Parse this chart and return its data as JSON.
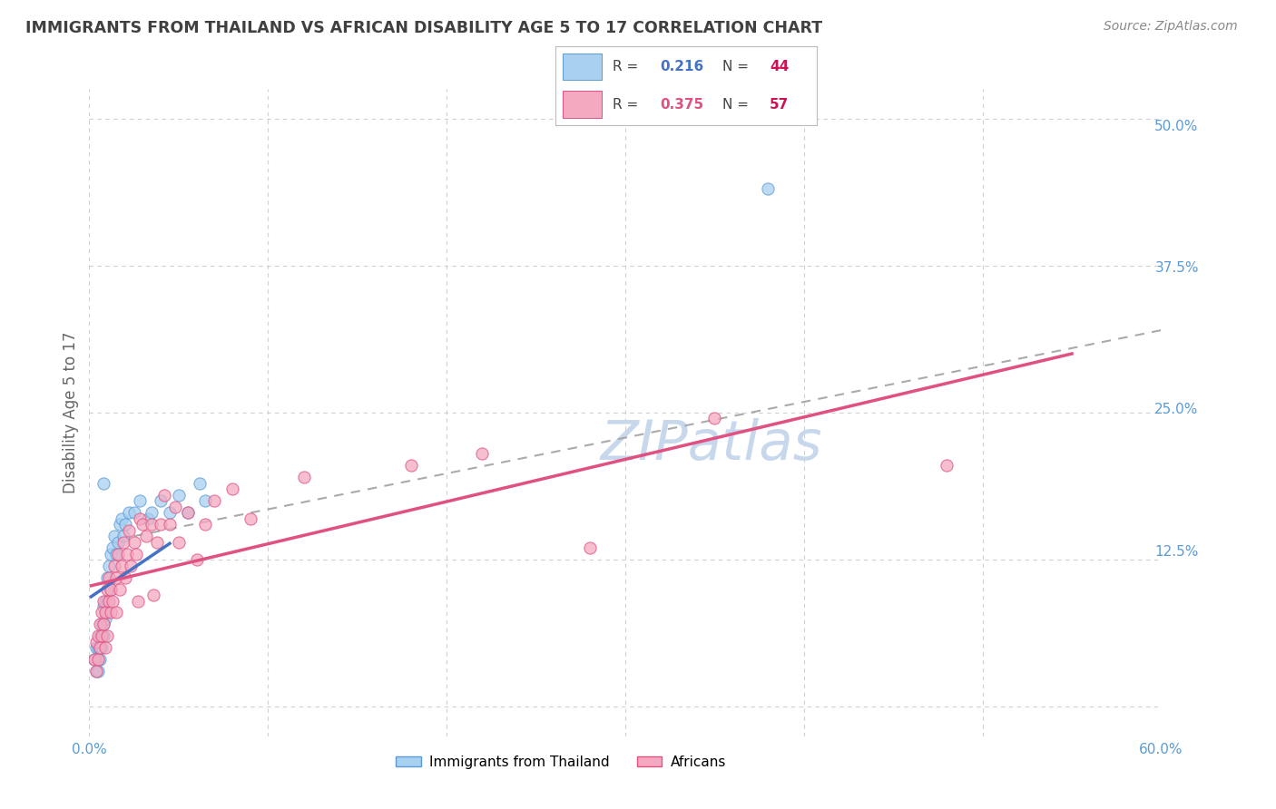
{
  "title": "IMMIGRANTS FROM THAILAND VS AFRICAN DISABILITY AGE 5 TO 17 CORRELATION CHART",
  "source": "Source: ZipAtlas.com",
  "ylabel": "Disability Age 5 to 17",
  "xlim": [
    0.0,
    0.6
  ],
  "ylim": [
    -0.025,
    0.525
  ],
  "R_thailand": 0.216,
  "N_thailand": 44,
  "R_african": 0.375,
  "N_african": 57,
  "color_thailand_fill": "#a8d0f0",
  "color_thailand_edge": "#5b9bd5",
  "color_african_fill": "#f4a9c0",
  "color_african_edge": "#e05080",
  "color_thailand_line": "#4472c4",
  "color_african_line": "#e05080",
  "color_dashed": "#aaaaaa",
  "grid_color": "#d0d0d0",
  "title_color": "#404040",
  "right_tick_color": "#5b9bd5",
  "bottom_tick_color": "#5b9bd5",
  "watermark_color": "#c8d8ec",
  "th_x": [
    0.003,
    0.004,
    0.004,
    0.005,
    0.005,
    0.005,
    0.006,
    0.006,
    0.006,
    0.007,
    0.007,
    0.007,
    0.008,
    0.008,
    0.008,
    0.009,
    0.009,
    0.01,
    0.01,
    0.01,
    0.011,
    0.012,
    0.012,
    0.013,
    0.014,
    0.015,
    0.016,
    0.017,
    0.018,
    0.019,
    0.02,
    0.022,
    0.025,
    0.028,
    0.033,
    0.035,
    0.04,
    0.045,
    0.05,
    0.055,
    0.062,
    0.065,
    0.38,
    0.008
  ],
  "th_y": [
    0.04,
    0.03,
    0.05,
    0.05,
    0.04,
    0.03,
    0.06,
    0.05,
    0.04,
    0.07,
    0.06,
    0.05,
    0.085,
    0.07,
    0.06,
    0.09,
    0.075,
    0.11,
    0.09,
    0.08,
    0.12,
    0.13,
    0.1,
    0.135,
    0.145,
    0.13,
    0.14,
    0.155,
    0.16,
    0.145,
    0.155,
    0.165,
    0.165,
    0.175,
    0.16,
    0.165,
    0.175,
    0.165,
    0.18,
    0.165,
    0.19,
    0.175,
    0.44,
    0.19
  ],
  "af_x": [
    0.003,
    0.004,
    0.004,
    0.005,
    0.005,
    0.006,
    0.006,
    0.007,
    0.007,
    0.008,
    0.008,
    0.009,
    0.009,
    0.01,
    0.01,
    0.011,
    0.011,
    0.012,
    0.012,
    0.013,
    0.014,
    0.015,
    0.015,
    0.016,
    0.017,
    0.018,
    0.019,
    0.02,
    0.021,
    0.022,
    0.023,
    0.025,
    0.026,
    0.027,
    0.028,
    0.03,
    0.032,
    0.035,
    0.036,
    0.038,
    0.04,
    0.042,
    0.045,
    0.048,
    0.05,
    0.055,
    0.06,
    0.065,
    0.07,
    0.08,
    0.09,
    0.12,
    0.18,
    0.22,
    0.28,
    0.35,
    0.48
  ],
  "af_y": [
    0.04,
    0.03,
    0.055,
    0.04,
    0.06,
    0.05,
    0.07,
    0.06,
    0.08,
    0.07,
    0.09,
    0.05,
    0.08,
    0.1,
    0.06,
    0.09,
    0.11,
    0.08,
    0.1,
    0.09,
    0.12,
    0.11,
    0.08,
    0.13,
    0.1,
    0.12,
    0.14,
    0.11,
    0.13,
    0.15,
    0.12,
    0.14,
    0.13,
    0.09,
    0.16,
    0.155,
    0.145,
    0.155,
    0.095,
    0.14,
    0.155,
    0.18,
    0.155,
    0.17,
    0.14,
    0.165,
    0.125,
    0.155,
    0.175,
    0.185,
    0.16,
    0.195,
    0.205,
    0.215,
    0.135,
    0.245,
    0.205
  ]
}
